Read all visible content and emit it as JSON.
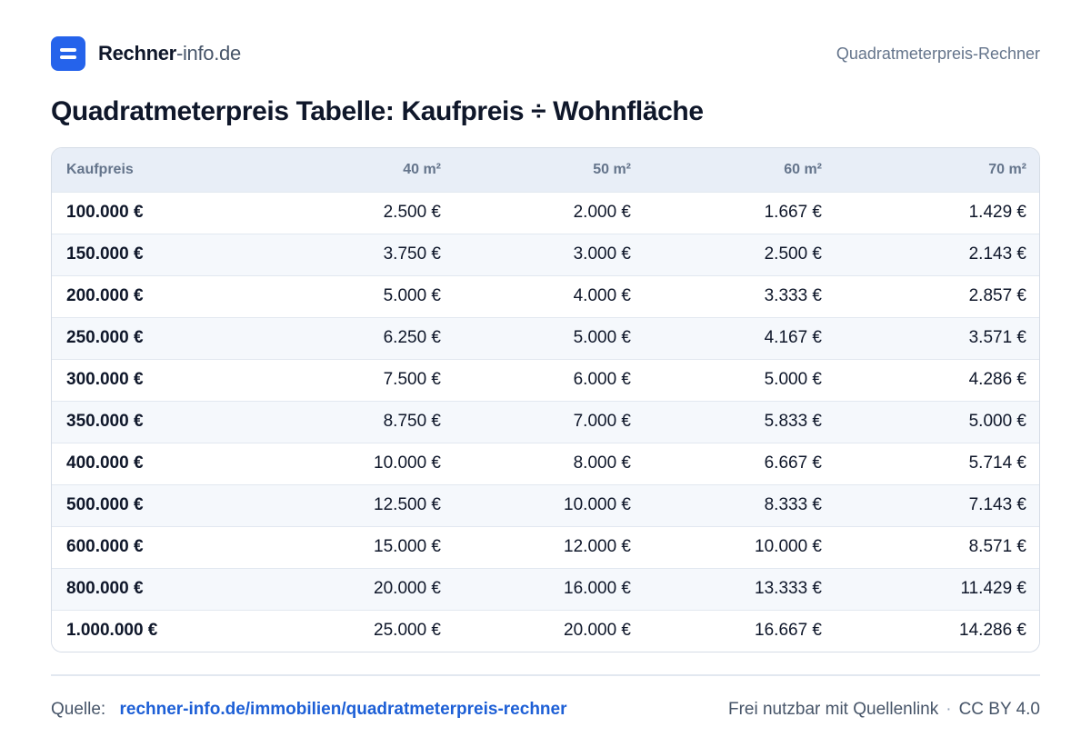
{
  "brand": {
    "name_strong": "Rechner",
    "name_light": "-info.de"
  },
  "header": {
    "right_text": "Quadratmeterpreis-Rechner"
  },
  "title": "Quadratmeterpreis Tabelle: Kaufpreis ÷ Wohnfläche",
  "table": {
    "headers": [
      "Kaufpreis",
      "40 m²",
      "50 m²",
      "60 m²",
      "70 m²"
    ],
    "rows": [
      [
        "100.000 €",
        "2.500 €",
        "2.000 €",
        "1.667 €",
        "1.429 €"
      ],
      [
        "150.000 €",
        "3.750 €",
        "3.000 €",
        "2.500 €",
        "2.143 €"
      ],
      [
        "200.000 €",
        "5.000 €",
        "4.000 €",
        "3.333 €",
        "2.857 €"
      ],
      [
        "250.000 €",
        "6.250 €",
        "5.000 €",
        "4.167 €",
        "3.571 €"
      ],
      [
        "300.000 €",
        "7.500 €",
        "6.000 €",
        "5.000 €",
        "4.286 €"
      ],
      [
        "350.000 €",
        "8.750 €",
        "7.000 €",
        "5.833 €",
        "5.000 €"
      ],
      [
        "400.000 €",
        "10.000 €",
        "8.000 €",
        "6.667 €",
        "5.714 €"
      ],
      [
        "500.000 €",
        "12.500 €",
        "10.000 €",
        "8.333 €",
        "7.143 €"
      ],
      [
        "600.000 €",
        "15.000 €",
        "12.000 €",
        "10.000 €",
        "8.571 €"
      ],
      [
        "800.000 €",
        "20.000 €",
        "16.000 €",
        "13.333 €",
        "11.429 €"
      ],
      [
        "1.000.000 €",
        "25.000 €",
        "20.000 €",
        "16.667 €",
        "14.286 €"
      ]
    ]
  },
  "footer": {
    "source_label": "Quelle:",
    "source_link": "rechner-info.de/immobilien/quadratmeterpreis-rechner",
    "usage_note": "Frei nutzbar mit Quellenlink",
    "separator": "·",
    "license": "CC BY 4.0"
  },
  "colors": {
    "accent": "#2563eb",
    "link": "#1d5fd6",
    "header_bg": "#e8eef7",
    "text": "#0f172a",
    "muted": "#64748b"
  },
  "icons": {
    "logo": "document-lines-icon"
  }
}
